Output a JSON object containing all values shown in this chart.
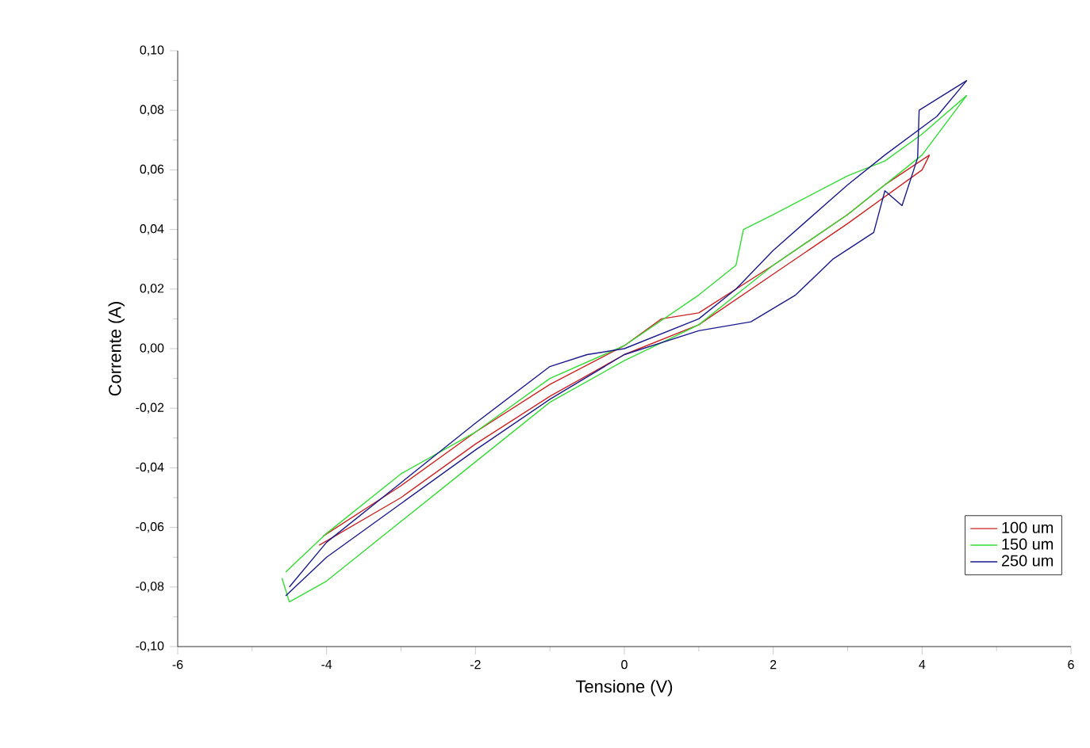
{
  "chart_data": {
    "type": "line",
    "xlabel": "Tensione (V)",
    "ylabel": "Corrente (A)",
    "xlim": [
      -6,
      6
    ],
    "xticks": [
      -6,
      -4,
      -2,
      0,
      2,
      4,
      6
    ],
    "ylim": [
      -0.1,
      0.1
    ],
    "yticks": [
      {
        "value": -0.1,
        "label": "-0,10"
      },
      {
        "value": -0.08,
        "label": "-0,08"
      },
      {
        "value": -0.06,
        "label": "-0,06"
      },
      {
        "value": -0.04,
        "label": "-0,04"
      },
      {
        "value": -0.02,
        "label": "-0,02"
      },
      {
        "value": 0,
        "label": "0,00"
      },
      {
        "value": 0.02,
        "label": "0,02"
      },
      {
        "value": 0.04,
        "label": "0,04"
      },
      {
        "value": 0.06,
        "label": "0,06"
      },
      {
        "value": 0.08,
        "label": "0,08"
      },
      {
        "value": 0.1,
        "label": "0,10"
      }
    ],
    "grid": false,
    "legend": "bottom right",
    "series": [
      {
        "name": "100 um",
        "color": "#cc2222",
        "x": [
          -4.1,
          -3,
          -2,
          -1,
          0,
          1,
          2,
          3,
          4,
          4.1
        ],
        "values": [
          -0.066,
          -0.05,
          -0.032,
          -0.016,
          -0.002,
          0.008,
          0.025,
          0.042,
          0.06,
          0.065
        ]
      },
      {
        "color": "#cc2222",
        "x": [
          4.1,
          3.5,
          3,
          2,
          1,
          0.5,
          0,
          -1,
          -2,
          -3,
          -4.05
        ],
        "values": [
          0.065,
          0.055,
          0.045,
          0.028,
          0.012,
          0.01,
          0.001,
          -0.012,
          -0.028,
          -0.046,
          -0.063
        ]
      },
      {
        "name": "150 um",
        "color": "#33dd33",
        "x": [
          -4.6,
          -4.5,
          -4,
          -3,
          -2,
          -1,
          0,
          1,
          1.5,
          2,
          3,
          4,
          4.6
        ],
        "values": [
          -0.077,
          -0.085,
          -0.078,
          -0.058,
          -0.038,
          -0.018,
          -0.004,
          0.008,
          0.018,
          0.028,
          0.045,
          0.065,
          0.085
        ]
      },
      {
        "color": "#33dd33",
        "x": [
          4.6,
          4,
          3.5,
          3,
          2,
          1.6,
          1.5,
          1,
          0,
          -1,
          -2,
          -3,
          -4,
          -4.55
        ],
        "values": [
          0.085,
          0.072,
          0.063,
          0.058,
          0.045,
          0.04,
          0.028,
          0.018,
          0.001,
          -0.01,
          -0.028,
          -0.042,
          -0.062,
          -0.075
        ]
      },
      {
        "name": "250 um",
        "color": "#1a1a8c",
        "x": [
          -4.55,
          -4,
          -3,
          -2,
          -1,
          0,
          1,
          1.7,
          2.3,
          2.8,
          3.35,
          3.5,
          3.73,
          3.94,
          3.96,
          4.6
        ],
        "values": [
          -0.083,
          -0.07,
          -0.052,
          -0.034,
          -0.017,
          -0.002,
          0.006,
          0.009,
          0.018,
          0.03,
          0.039,
          0.053,
          0.048,
          0.064,
          0.08,
          0.09
        ]
      },
      {
        "color": "#1a1a8c",
        "x": [
          4.6,
          4.2,
          3.5,
          3,
          2,
          1.5,
          1,
          0,
          -0.5,
          -1,
          -2,
          -3,
          -4,
          -4.5
        ],
        "values": [
          0.09,
          0.078,
          0.065,
          0.055,
          0.033,
          0.02,
          0.01,
          0,
          -0.002,
          -0.006,
          -0.025,
          -0.045,
          -0.065,
          -0.08
        ]
      }
    ]
  }
}
